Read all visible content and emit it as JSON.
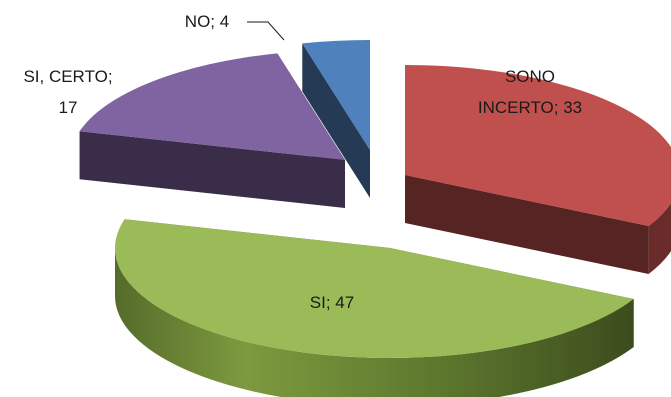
{
  "chart_data": {
    "type": "pie",
    "style": "3d-exploded",
    "categories": [
      "SONO INCERTO",
      "SI",
      "SI, CERTO",
      "NO"
    ],
    "values": [
      33,
      47,
      17,
      4
    ],
    "colors": {
      "SONO INCERTO": "#c0504d",
      "SI": "#9bbb59",
      "SI, CERTO": "#8064a2",
      "NO": "#4f81bd"
    },
    "labels": {
      "sono_incerto": [
        "SONO",
        "INCERTO; 33"
      ],
      "si": [
        "SI; 47"
      ],
      "si_certo": [
        "SI, CERTO;",
        "17"
      ],
      "no": [
        "NO; 4"
      ]
    }
  }
}
